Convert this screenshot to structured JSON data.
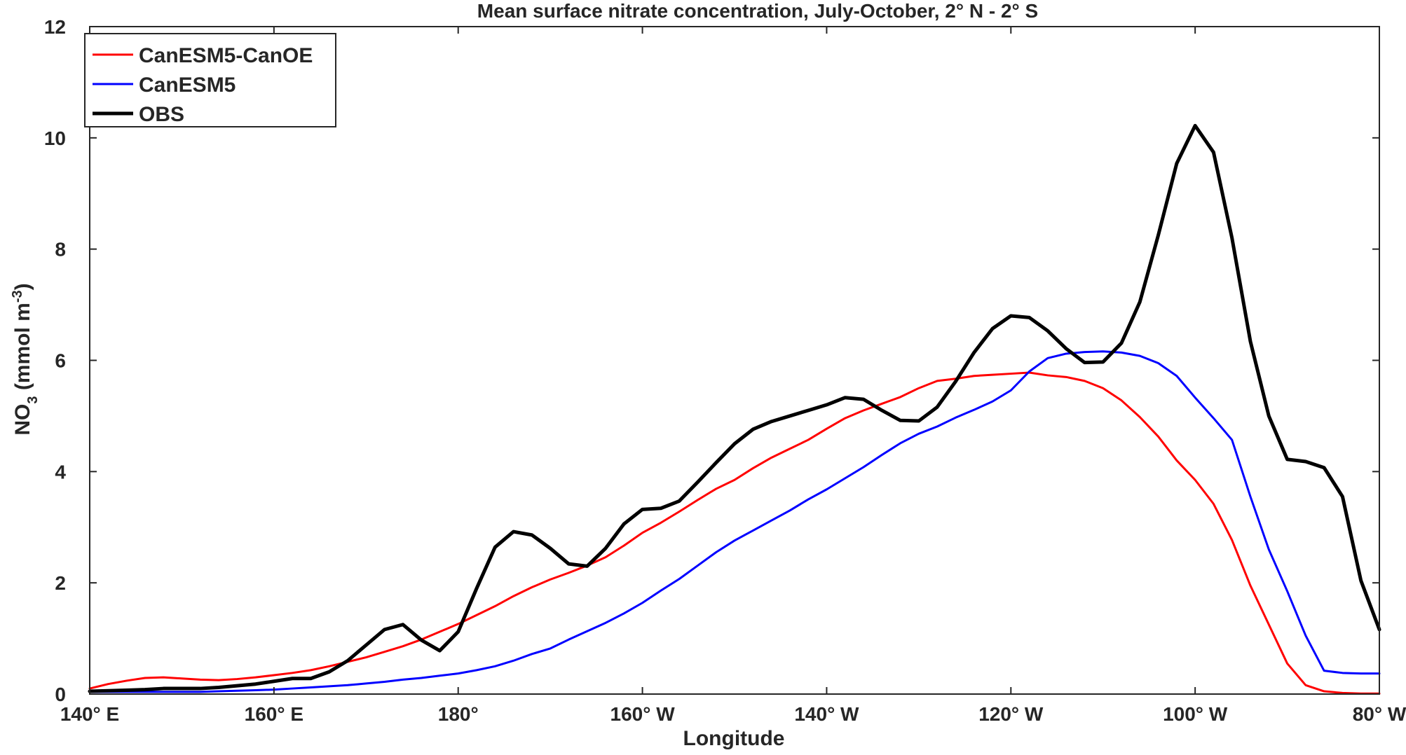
{
  "chart_data": {
    "type": "line",
    "title": "Mean surface nitrate concentration, July-October, 2° N - 2° S",
    "xlabel": "Longitude",
    "ylabel": {
      "main": "NO",
      "sub": "3",
      "unit_open": " (mmol m",
      "sup": "-3",
      "unit_close": ")"
    },
    "xlim": [
      140,
      280
    ],
    "ylim": [
      0,
      12
    ],
    "x_ticks": [
      140,
      160,
      180,
      200,
      220,
      240,
      260,
      280
    ],
    "x_tick_labels": [
      "140° E",
      "160° E",
      "180°",
      "160° W",
      "140° W",
      "120° W",
      "100° W",
      "80° W"
    ],
    "y_ticks": [
      0,
      2,
      4,
      6,
      8,
      10,
      12
    ],
    "y_tick_labels": [
      "0",
      "2",
      "4",
      "6",
      "8",
      "10",
      "12"
    ],
    "legend_position": "top-left",
    "x": [
      140,
      142,
      144,
      146,
      148,
      150,
      152,
      154,
      156,
      158,
      160,
      162,
      164,
      166,
      168,
      170,
      172,
      174,
      176,
      178,
      180,
      182,
      184,
      186,
      188,
      190,
      192,
      194,
      196,
      198,
      200,
      202,
      204,
      206,
      208,
      210,
      212,
      214,
      216,
      218,
      220,
      222,
      224,
      226,
      228,
      230,
      232,
      234,
      236,
      238,
      240,
      242,
      244,
      246,
      248,
      250,
      252,
      254,
      256,
      258,
      260,
      262,
      264,
      266,
      268,
      270,
      272,
      274,
      276,
      278,
      280
    ],
    "series": [
      {
        "name": "CanESM5-CanOE",
        "color": "#ff0000",
        "values": [
          0.1,
          0.18,
          0.24,
          0.29,
          0.3,
          0.28,
          0.26,
          0.25,
          0.27,
          0.3,
          0.34,
          0.38,
          0.43,
          0.5,
          0.58,
          0.66,
          0.76,
          0.86,
          0.98,
          1.12,
          1.26,
          1.42,
          1.58,
          1.76,
          1.92,
          2.06,
          2.18,
          2.31,
          2.46,
          2.67,
          2.9,
          3.08,
          3.28,
          3.49,
          3.69,
          3.85,
          4.06,
          4.25,
          4.41,
          4.57,
          4.77,
          4.96,
          5.1,
          5.22,
          5.34,
          5.5,
          5.63,
          5.67,
          5.72,
          5.74,
          5.76,
          5.78,
          5.73,
          5.7,
          5.63,
          5.5,
          5.28,
          4.98,
          4.63,
          4.2,
          3.85,
          3.42,
          2.77,
          1.95,
          1.25,
          0.55,
          0.16,
          0.05,
          0.02,
          0.01,
          0.01
        ]
      },
      {
        "name": "CanESM5",
        "color": "#0000ff",
        "values": [
          0.04,
          0.04,
          0.04,
          0.04,
          0.04,
          0.04,
          0.04,
          0.05,
          0.06,
          0.07,
          0.08,
          0.1,
          0.12,
          0.14,
          0.16,
          0.19,
          0.22,
          0.26,
          0.29,
          0.33,
          0.37,
          0.43,
          0.5,
          0.6,
          0.72,
          0.82,
          0.98,
          1.13,
          1.28,
          1.45,
          1.64,
          1.86,
          2.07,
          2.31,
          2.55,
          2.76,
          2.94,
          3.12,
          3.3,
          3.5,
          3.68,
          3.88,
          4.08,
          4.3,
          4.51,
          4.68,
          4.81,
          4.97,
          5.11,
          5.26,
          5.46,
          5.8,
          6.04,
          6.12,
          6.15,
          6.16,
          6.14,
          6.08,
          5.95,
          5.72,
          5.33,
          4.96,
          4.57,
          3.55,
          2.6,
          1.85,
          1.05,
          0.42,
          0.38,
          0.37,
          0.37
        ]
      },
      {
        "name": "OBS",
        "color": "#000000",
        "values": [
          0.05,
          0.06,
          0.07,
          0.08,
          0.1,
          0.1,
          0.1,
          0.12,
          0.15,
          0.18,
          0.23,
          0.28,
          0.28,
          0.4,
          0.6,
          0.88,
          1.16,
          1.25,
          0.97,
          0.78,
          1.12,
          1.9,
          2.64,
          2.92,
          2.86,
          2.62,
          2.34,
          2.3,
          2.62,
          3.06,
          3.32,
          3.34,
          3.47,
          3.81,
          4.16,
          4.5,
          4.76,
          4.9,
          5.0,
          5.1,
          5.2,
          5.33,
          5.3,
          5.1,
          4.92,
          4.91,
          5.16,
          5.62,
          6.14,
          6.57,
          6.8,
          6.77,
          6.53,
          6.21,
          5.96,
          5.97,
          6.31,
          7.05,
          8.25,
          9.54,
          10.22,
          9.74,
          8.2,
          6.34,
          5.0,
          4.22,
          4.18,
          4.07,
          3.55,
          2.04,
          1.16
        ]
      }
    ]
  }
}
